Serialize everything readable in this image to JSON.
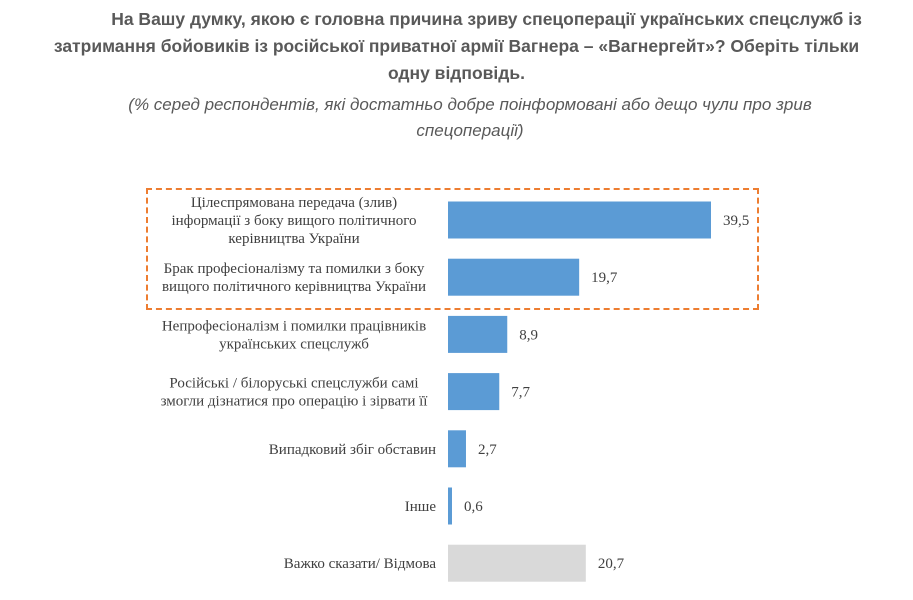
{
  "title_lines": [
    "На Вашу думку, якою є головна причина зриву спецоперації українських спецслужб із",
    "затримання бойовиків із російської приватної армії Вагнера – «Вагнергейт»? Оберіть тільки",
    "одну відповідь."
  ],
  "subtitle_lines": [
    "(% серед респондентів, які достатньо добре поінформовані або дещо чули про зрив",
    "спецоперації)"
  ],
  "chart_data": {
    "type": "bar",
    "orientation": "horizontal",
    "categories": [
      [
        "Цілеспрямована передача (злив)",
        "інформації з боку вищого політичного",
        "керівництва України"
      ],
      [
        "Брак професіоналізму та помилки з боку",
        "вищого політичного керівництва України"
      ],
      [
        "Непрофесіоналізм і помилки працівників",
        "українських спецслужб"
      ],
      [
        "Російські / білоруські спецслужби самі",
        "змогли дізнатися про операцію і зірвати її"
      ],
      [
        "Випадковий збіг обставин"
      ],
      [
        "Інше"
      ],
      [
        "Важко сказати/ Відмова"
      ]
    ],
    "values": [
      39.5,
      19.7,
      8.9,
      7.7,
      2.7,
      0.6,
      20.7
    ],
    "value_labels": [
      "39,5",
      "19,7",
      "8,9",
      "7,7",
      "2,7",
      "0,6",
      "20,7"
    ],
    "colors": [
      "#5B9BD5",
      "#5B9BD5",
      "#5B9BD5",
      "#5B9BD5",
      "#5B9BD5",
      "#5B9BD5",
      "#D9D9D9"
    ],
    "highlight_color": "#ED7D31",
    "highlighted_categories": [
      0,
      1
    ],
    "grid": false,
    "legend": "none"
  }
}
